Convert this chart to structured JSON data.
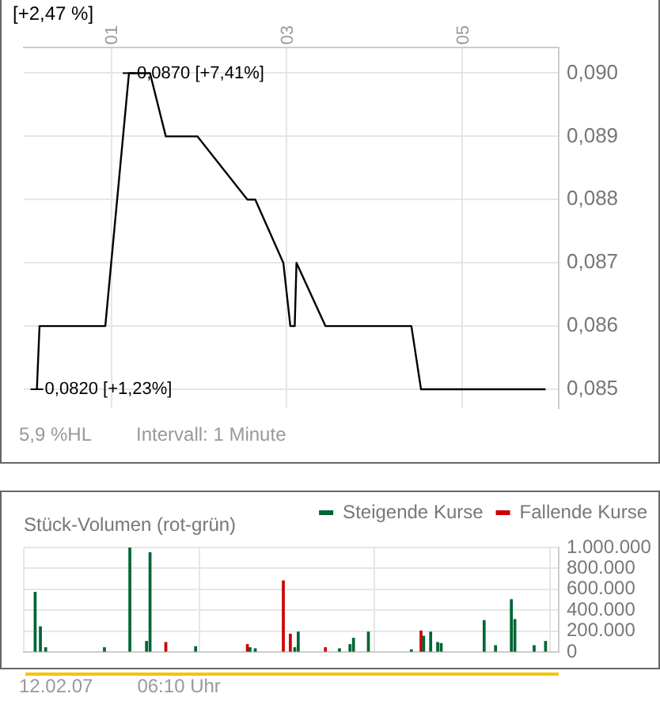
{
  "chart_data": [
    {
      "type": "line",
      "color": "#000000",
      "marker": "none",
      "line_style": "solid",
      "legend": false,
      "grid": true,
      "x": [
        0.15,
        0.18,
        0.93,
        1.2,
        1.44,
        1.62,
        1.98,
        2.55,
        2.64,
        2.96,
        3.04,
        3.09,
        3.11,
        3.44,
        4.42,
        4.53,
        5.95
      ],
      "values": [
        0.085,
        0.086,
        0.086,
        0.09,
        0.09,
        0.089,
        0.089,
        0.088,
        0.088,
        0.087,
        0.086,
        0.086,
        0.087,
        0.086,
        0.086,
        0.085,
        0.085
      ],
      "xlim": [
        0,
        6.1
      ],
      "xticks": [
        {
          "value": 1,
          "label": "01"
        },
        {
          "value": 3,
          "label": "03"
        },
        {
          "value": 5,
          "label": "05"
        }
      ],
      "ylim": [
        0.0847,
        0.0904
      ],
      "yticks": [
        {
          "value": 0.085,
          "label": "0,085"
        },
        {
          "value": 0.086,
          "label": "0,086"
        },
        {
          "value": 0.087,
          "label": "0,087"
        },
        {
          "value": 0.088,
          "label": "0,088"
        },
        {
          "value": 0.089,
          "label": "0,089"
        },
        {
          "value": 0.09,
          "label": "0,090"
        }
      ],
      "annotations": [
        "[+2,47 %]",
        {
          "text": "0,0870 [+7,41%]",
          "x": 1.2,
          "y": 0.09
        },
        {
          "text": "0,0820 [+1,23%]",
          "x": 0.15,
          "y": 0.085
        },
        "5,9 %HL",
        "Intervall: 1 Minute"
      ]
    },
    {
      "type": "bar",
      "title": "Stück-Volumen (rot-grün)",
      "legend": "top right",
      "grid": true,
      "tick_labels": "y",
      "series": [
        {
          "name": "Steigende Kurse",
          "color": "#006633",
          "x": [
            0.13,
            0.19,
            0.25,
            0.92,
            1.21,
            1.4,
            1.44,
            1.96,
            2.58,
            2.64,
            3.09,
            3.13,
            3.6,
            3.72,
            3.76,
            3.93,
            4.42,
            4.56,
            4.64,
            4.72,
            4.76,
            5.25,
            5.38,
            5.56,
            5.6,
            5.82,
            5.95
          ],
          "values": [
            570000,
            240000,
            40000,
            40000,
            1000000,
            100000,
            950000,
            50000,
            40000,
            30000,
            40000,
            190000,
            30000,
            70000,
            130000,
            190000,
            20000,
            150000,
            190000,
            90000,
            80000,
            300000,
            60000,
            500000,
            310000,
            60000,
            100000
          ]
        },
        {
          "name": "Fallende Kurse",
          "color": "#cc0000",
          "x": [
            1.62,
            2.55,
            2.96,
            3.04,
            3.44,
            4.53
          ],
          "values": [
            90000,
            70000,
            680000,
            170000,
            40000,
            200000
          ]
        }
      ],
      "xlim": [
        0,
        6.1
      ],
      "xticks": [
        {
          "value": 1,
          "label": null
        },
        {
          "value": 3,
          "label": null
        },
        {
          "value": 5,
          "label": null
        }
      ],
      "ylim": [
        0,
        1000000
      ],
      "yticks": [
        {
          "value": 0,
          "label": "0"
        },
        {
          "value": 200000,
          "label": "200.000"
        },
        {
          "value": 400000,
          "label": "400.000"
        },
        {
          "value": 600000,
          "label": "600.000"
        },
        {
          "value": 800000,
          "label": "800.000"
        },
        {
          "value": 1000000,
          "label": "1.000.000"
        }
      ],
      "annotations": [
        "12.02.07",
        "06:10 Uhr"
      ]
    }
  ]
}
